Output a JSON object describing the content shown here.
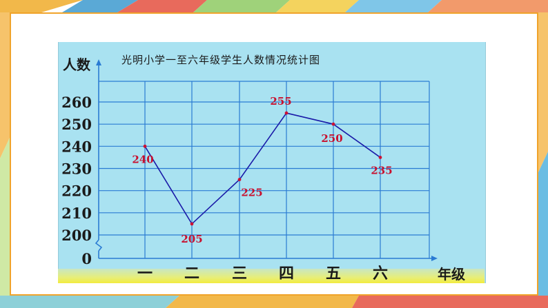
{
  "chart_data": {
    "type": "line",
    "title": "光明小学一至六年级学生人数情况统计图",
    "ylabel": "人数",
    "xlabel": "年级",
    "categories": [
      "一",
      "二",
      "三",
      "四",
      "五",
      "六"
    ],
    "values": [
      240,
      205,
      225,
      255,
      250,
      235
    ],
    "value_labels": [
      "240",
      "205",
      "225",
      "255",
      "250",
      "235"
    ],
    "yticks": [
      0,
      200,
      210,
      220,
      230,
      240,
      250,
      260
    ],
    "ytick_labels": [
      "0",
      "200",
      "210",
      "220",
      "230",
      "240",
      "250",
      "260"
    ],
    "ylim": [
      200,
      260
    ],
    "y_axis_break": true,
    "grid": true,
    "colors": {
      "line": "#1a1aa8",
      "marker": "#cc1133",
      "data_label": "#c8102e",
      "grid": "#2a7bd3",
      "axis": "#2a7bd3",
      "text": "#1a1a1a",
      "panel": "#a9e2f1",
      "frame": "#f0a32a"
    }
  }
}
